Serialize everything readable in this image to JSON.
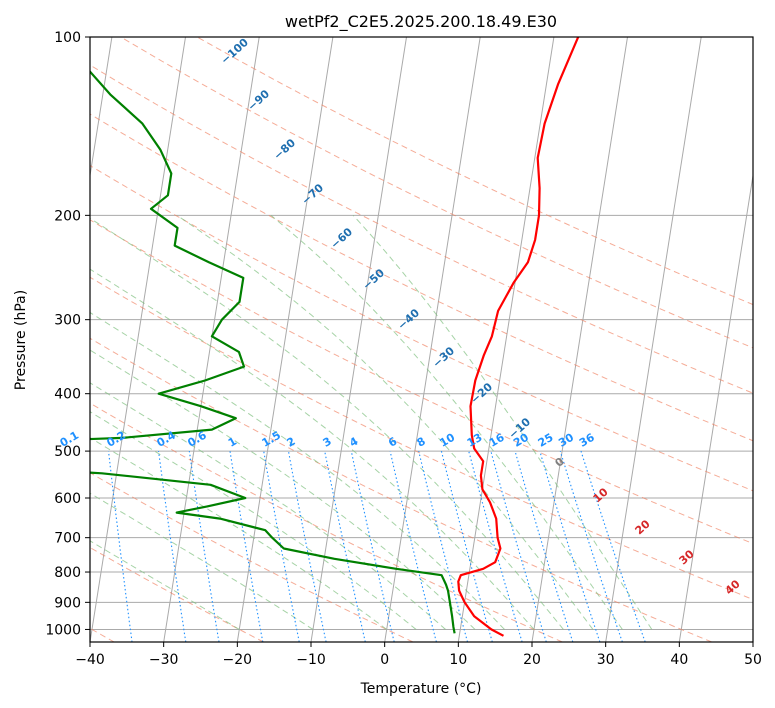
{
  "chart_data": {
    "type": "line",
    "subtype": "skew-t log-p diagram",
    "title": "wetPf2_C2E5.2025.200.18.49.E30",
    "xlabel": "Temperature (°C)",
    "ylabel": "Pressure (hPa)",
    "xlim": [
      -40,
      50
    ],
    "ylim": [
      1050,
      100
    ],
    "y_scale": "log",
    "grid": true,
    "x_ticks": [
      "−40",
      "−30",
      "−20",
      "−10",
      "0",
      "10",
      "20",
      "30",
      "40",
      "50"
    ],
    "y_ticks": [
      "100",
      "200",
      "300",
      "400",
      "500",
      "600",
      "700",
      "800",
      "900",
      "1000"
    ],
    "series": [
      {
        "color": "#ff0000",
        "role": "temperature",
        "points": [
          {
            "p": 1025,
            "t": 16.0
          },
          {
            "p": 1000,
            "t": 14.2
          },
          {
            "p": 950,
            "t": 11.6
          },
          {
            "p": 900,
            "t": 10.0
          },
          {
            "p": 860,
            "t": 9.0
          },
          {
            "p": 830,
            "t": 8.7
          },
          {
            "p": 810,
            "t": 8.9
          },
          {
            "p": 790,
            "t": 11.8
          },
          {
            "p": 770,
            "t": 13.3
          },
          {
            "p": 730,
            "t": 13.7
          },
          {
            "p": 700,
            "t": 13.1
          },
          {
            "p": 650,
            "t": 12.5
          },
          {
            "p": 610,
            "t": 11.3
          },
          {
            "p": 580,
            "t": 10.0
          },
          {
            "p": 550,
            "t": 9.5
          },
          {
            "p": 520,
            "t": 9.5
          },
          {
            "p": 495,
            "t": 8.0
          },
          {
            "p": 470,
            "t": 7.4
          },
          {
            "p": 420,
            "t": 6.6
          },
          {
            "p": 380,
            "t": 6.7
          },
          {
            "p": 345,
            "t": 7.3
          },
          {
            "p": 320,
            "t": 8.0
          },
          {
            "p": 290,
            "t": 8.3
          },
          {
            "p": 260,
            "t": 9.8
          },
          {
            "p": 240,
            "t": 11.3
          },
          {
            "p": 220,
            "t": 11.8
          },
          {
            "p": 200,
            "t": 11.8
          },
          {
            "p": 180,
            "t": 11.3
          },
          {
            "p": 160,
            "t": 10.4
          },
          {
            "p": 140,
            "t": 10.6
          },
          {
            "p": 120,
            "t": 11.6
          },
          {
            "p": 100,
            "t": 13.3
          }
        ]
      },
      {
        "color": "#008000",
        "role": "dewpoint",
        "points": [
          {
            "p": 1015,
            "t": 9.3
          },
          {
            "p": 990,
            "t": 9.0
          },
          {
            "p": 950,
            "t": 8.6
          },
          {
            "p": 900,
            "t": 8.0
          },
          {
            "p": 860,
            "t": 7.5
          },
          {
            "p": 840,
            "t": 7.1
          },
          {
            "p": 810,
            "t": 6.3
          },
          {
            "p": 790,
            "t": 0.0
          },
          {
            "p": 760,
            "t": -8.6
          },
          {
            "p": 730,
            "t": -15.7
          },
          {
            "p": 700,
            "t": -17.5
          },
          {
            "p": 680,
            "t": -18.6
          },
          {
            "p": 650,
            "t": -25.0
          },
          {
            "p": 635,
            "t": -31.0
          },
          {
            "p": 620,
            "t": -27.0
          },
          {
            "p": 600,
            "t": -22.0
          },
          {
            "p": 570,
            "t": -27.0
          },
          {
            "p": 545,
            "t": -42.0
          },
          {
            "p": 520,
            "t": -70.0
          },
          {
            "p": 490,
            "t": -70.0
          },
          {
            "p": 475,
            "t": -40.0
          },
          {
            "p": 460,
            "t": -28.0
          },
          {
            "p": 440,
            "t": -25.0
          },
          {
            "p": 420,
            "t": -30.0
          },
          {
            "p": 400,
            "t": -36.0
          },
          {
            "p": 380,
            "t": -30.0
          },
          {
            "p": 360,
            "t": -25.0
          },
          {
            "p": 340,
            "t": -26.0
          },
          {
            "p": 320,
            "t": -30.0
          },
          {
            "p": 300,
            "t": -29.0
          },
          {
            "p": 280,
            "t": -27.0
          },
          {
            "p": 255,
            "t": -27.0
          },
          {
            "p": 240,
            "t": -32.0
          },
          {
            "p": 225,
            "t": -37.0
          },
          {
            "p": 210,
            "t": -37.0
          },
          {
            "p": 195,
            "t": -41.0
          },
          {
            "p": 185,
            "t": -39.0
          },
          {
            "p": 170,
            "t": -39.0
          },
          {
            "p": 155,
            "t": -41.0
          },
          {
            "p": 140,
            "t": -44.0
          },
          {
            "p": 125,
            "t": -49.0
          },
          {
            "p": 112,
            "t": -53.0
          },
          {
            "p": 100,
            "t": -56.0
          }
        ]
      }
    ],
    "dry_adiabats": {
      "theta_K": [
        -160,
        -140,
        -120,
        -100,
        -80,
        -60,
        -40,
        -20,
        0,
        20,
        40,
        60,
        80,
        100,
        120,
        140,
        160,
        180
      ]
    },
    "moist_adiabats": {
      "labels": [
        "−100",
        "−90",
        "−80",
        "−70",
        "−60",
        "−50",
        "−40",
        "−30",
        "−20",
        "−10",
        "0",
        "10",
        "20",
        "30",
        "40"
      ]
    },
    "mixing_ratios": {
      "values_gkg": [
        0.1,
        0.2,
        0.4,
        0.6,
        1,
        1.5,
        2,
        3,
        4,
        6,
        8,
        10,
        13,
        16,
        20,
        25,
        30,
        36
      ],
      "labels": [
        "0.1",
        "0.2",
        "0.4",
        "0.6",
        "1",
        "1.5",
        "2",
        "3",
        "4",
        "6",
        "8",
        "10",
        "13",
        "16",
        "20",
        "25",
        "30",
        "36"
      ]
    },
    "isotherm_color": "#aaaaaa",
    "dry_adiabat_color": "#f08060",
    "moist_adiabat_color": "#80c080",
    "mixing_ratio_color": "#1e90ff",
    "moist_label_color": "#1f6fb0",
    "warm_label_color": "#d62728",
    "zero_label_color": "#808080"
  }
}
